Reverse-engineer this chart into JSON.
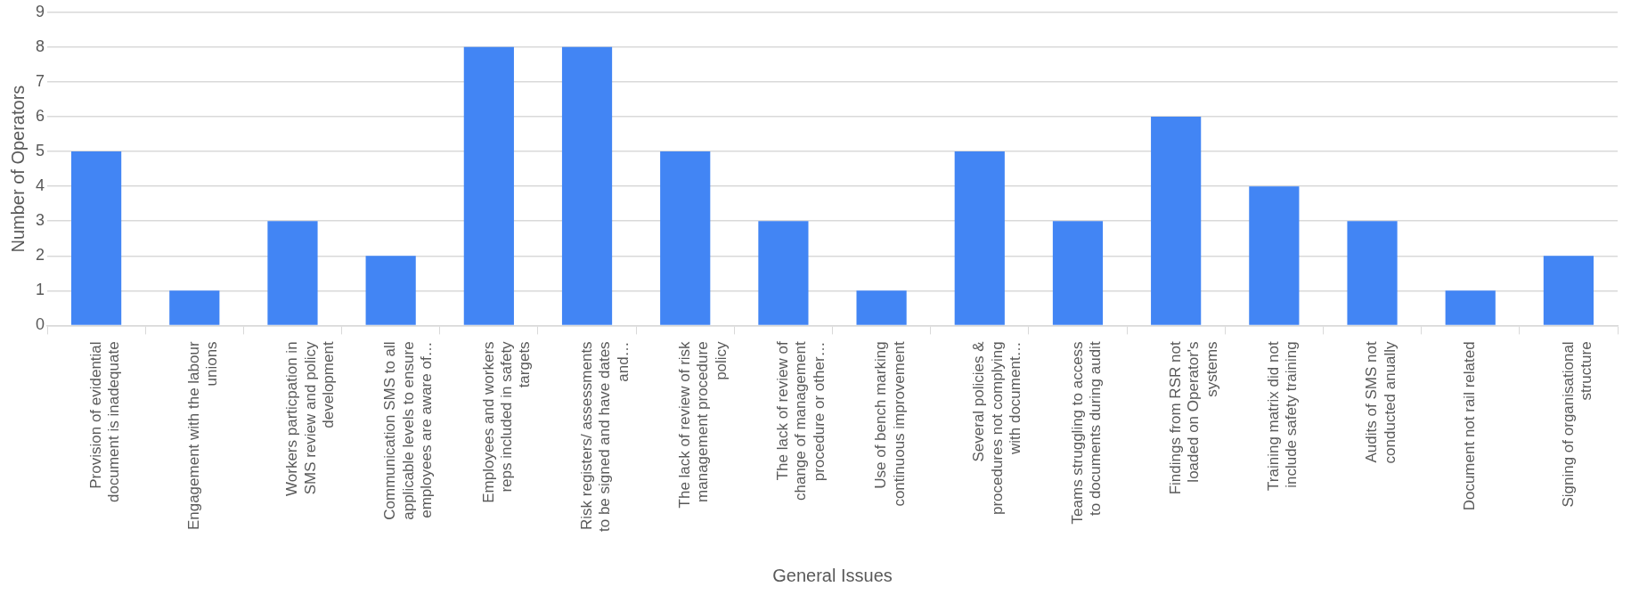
{
  "chart_data": {
    "type": "bar",
    "xlabel": "General Issues",
    "ylabel": "Number of Operators",
    "categories": [
      "Provision of evidential document is inadequate",
      "Engagement with the labour unions",
      "Workers particpation in SMS review and policy development",
      "Communication SMS to all applicable levels to ensure employees are aware of…",
      "Employees and workers reps included in safety targets",
      "Risk registers/ assessments to be signed and have dates and…",
      "The lack of review of risk management procedure policy",
      "The lack of review of change of management procedure or other…",
      "Use of bench marking continuous improvement",
      "Several policies & procedures not complying with document…",
      "Teams struggling to access to documents during audit",
      "Findings from RSR not loaded on Operator's systems",
      "Training matrix did not include safety training",
      "Audits of SMS not conducted anually",
      "Document not rail related",
      "Signing of organisational structure"
    ],
    "values": [
      5,
      1,
      3,
      2,
      8,
      8,
      5,
      3,
      1,
      5,
      3,
      6,
      4,
      3,
      1,
      2
    ],
    "color": "#4285f4",
    "ylim": [
      0,
      9
    ],
    "yticks": [
      0,
      1,
      2,
      3,
      4,
      5,
      6,
      7,
      8,
      9
    ],
    "grid": "y",
    "legend": false
  }
}
